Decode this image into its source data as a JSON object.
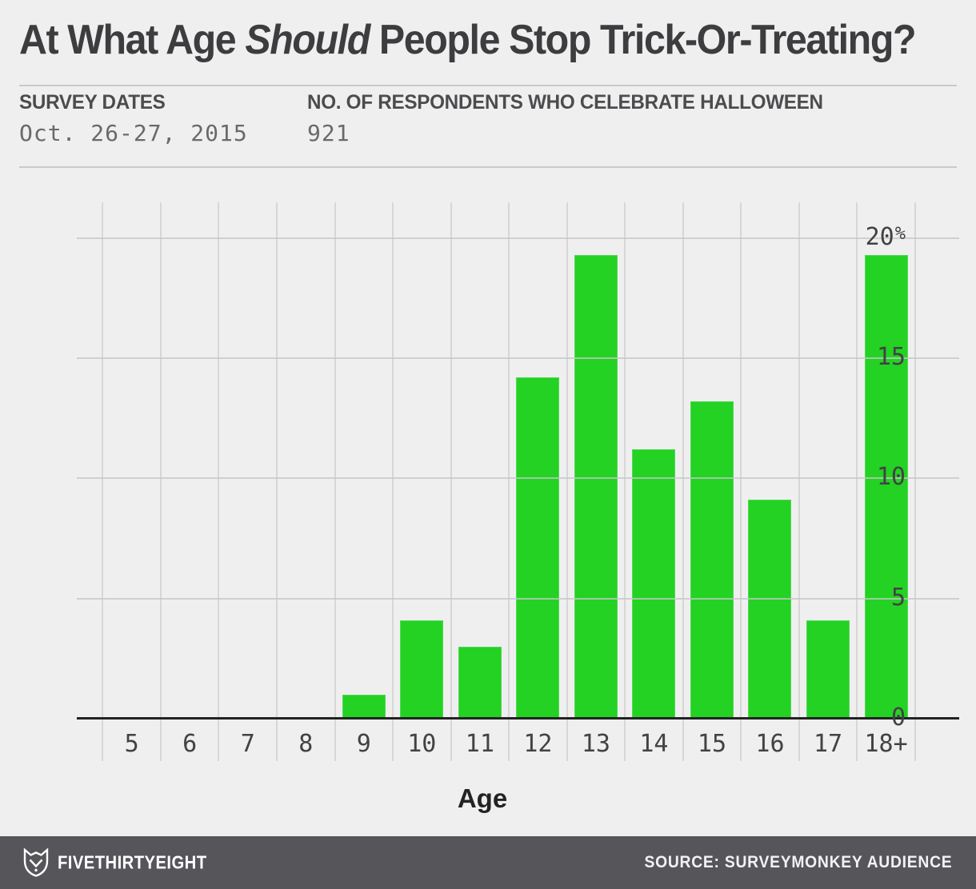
{
  "header": {
    "title_pre": "At What Age ",
    "title_italic": "Should",
    "title_post": " People Stop Trick-Or-Treating?"
  },
  "meta": {
    "col1": {
      "label": "SURVEY DATES",
      "value": "Oct. 26-27, 2015"
    },
    "col2": {
      "label": "NO. OF RESPONDENTS WHO CELEBRATE HALLOWEEN",
      "value": "921"
    }
  },
  "chart_data": {
    "type": "bar",
    "title": "At What Age Should People Stop Trick-Or-Treating?",
    "categories": [
      "5",
      "6",
      "7",
      "8",
      "9",
      "10",
      "11",
      "12",
      "13",
      "14",
      "15",
      "16",
      "17",
      "18+"
    ],
    "values": [
      0,
      0,
      0,
      0,
      1.0,
      4.1,
      3.0,
      14.2,
      19.3,
      11.2,
      13.2,
      9.1,
      4.1,
      19.3
    ],
    "xlabel": "Age",
    "ylabel": "",
    "ylim": [
      0,
      21.5
    ],
    "yticks": [
      0,
      5,
      10,
      15,
      20
    ],
    "ytick_labels": [
      "0",
      "5",
      "10",
      "15",
      "20%"
    ],
    "grid": true,
    "bar_color": "#23d223",
    "bar_edge_color": "#50d850",
    "gridline_color": "#d7d7d8",
    "axis_color": "#232325",
    "background_color": "#efeff0"
  },
  "footer": {
    "brand": "FIVETHIRTYEIGHT",
    "source": "SOURCE: SURVEYMONKEY AUDIENCE",
    "background": "#56565a"
  }
}
